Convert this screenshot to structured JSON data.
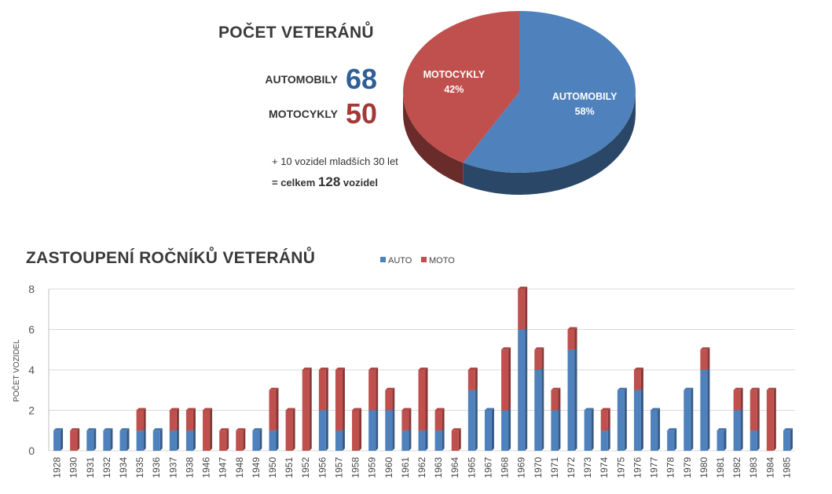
{
  "summary": {
    "title": "POČET VETERÁNŮ",
    "auto_label": "AUTOMOBILY",
    "auto_value": "68",
    "moto_label": "MOTOCYKLY",
    "moto_value": "50",
    "note_extra": "+ 10 vozidel mladších 30 let",
    "note_total_prefix": "= celkem",
    "note_total_number": "128",
    "note_total_suffix": "vozidel",
    "auto_color": "#2F5F98",
    "moto_color": "#A33A38"
  },
  "chart_data": [
    {
      "type": "pie",
      "title": "",
      "slices": [
        {
          "label": "AUTOMOBILY",
          "percent_label": "58%",
          "value": 58,
          "color": "#4F81BD"
        },
        {
          "label": "MOTOCYKLY",
          "percent_label": "42%",
          "value": 42,
          "color": "#C0504D"
        }
      ]
    },
    {
      "type": "bar",
      "stacked": true,
      "title": "ZASTOUPENÍ ROČNÍKŮ VETERÁNŮ",
      "xlabel": "",
      "ylabel": "POČET VOZIDEL",
      "ylim": [
        0,
        8
      ],
      "yticks": [
        0,
        2,
        4,
        6,
        8
      ],
      "grid": true,
      "legend_position": "top",
      "categories": [
        "1928",
        "1930",
        "1931",
        "1932",
        "1934",
        "1935",
        "1936",
        "1937",
        "1938",
        "1946",
        "1947",
        "1948",
        "1949",
        "1950",
        "1951",
        "1952",
        "1956",
        "1957",
        "1958",
        "1959",
        "1960",
        "1961",
        "1962",
        "1963",
        "1964",
        "1965",
        "1967",
        "1968",
        "1969",
        "1970",
        "1971",
        "1972",
        "1973",
        "1974",
        "1975",
        "1976",
        "1977",
        "1978",
        "1979",
        "1980",
        "1981",
        "1982",
        "1983",
        "1984",
        "1985"
      ],
      "series": [
        {
          "name": "AUTO",
          "color": "#4F81BD",
          "values": [
            1,
            0,
            1,
            1,
            1,
            1,
            1,
            1,
            1,
            0,
            0,
            0,
            1,
            1,
            0,
            0,
            2,
            1,
            0,
            2,
            2,
            1,
            1,
            1,
            0,
            3,
            2,
            2,
            6,
            4,
            2,
            5,
            2,
            1,
            3,
            3,
            2,
            1,
            3,
            4,
            1,
            2,
            1,
            0,
            1
          ]
        },
        {
          "name": "MOTO",
          "color": "#C0504D",
          "values": [
            0,
            1,
            0,
            0,
            0,
            1,
            0,
            1,
            1,
            2,
            1,
            1,
            0,
            2,
            2,
            4,
            2,
            3,
            2,
            2,
            1,
            1,
            3,
            1,
            1,
            1,
            0,
            3,
            2,
            1,
            1,
            1,
            0,
            1,
            0,
            1,
            0,
            0,
            0,
            1,
            0,
            1,
            2,
            3,
            0
          ]
        }
      ]
    }
  ]
}
